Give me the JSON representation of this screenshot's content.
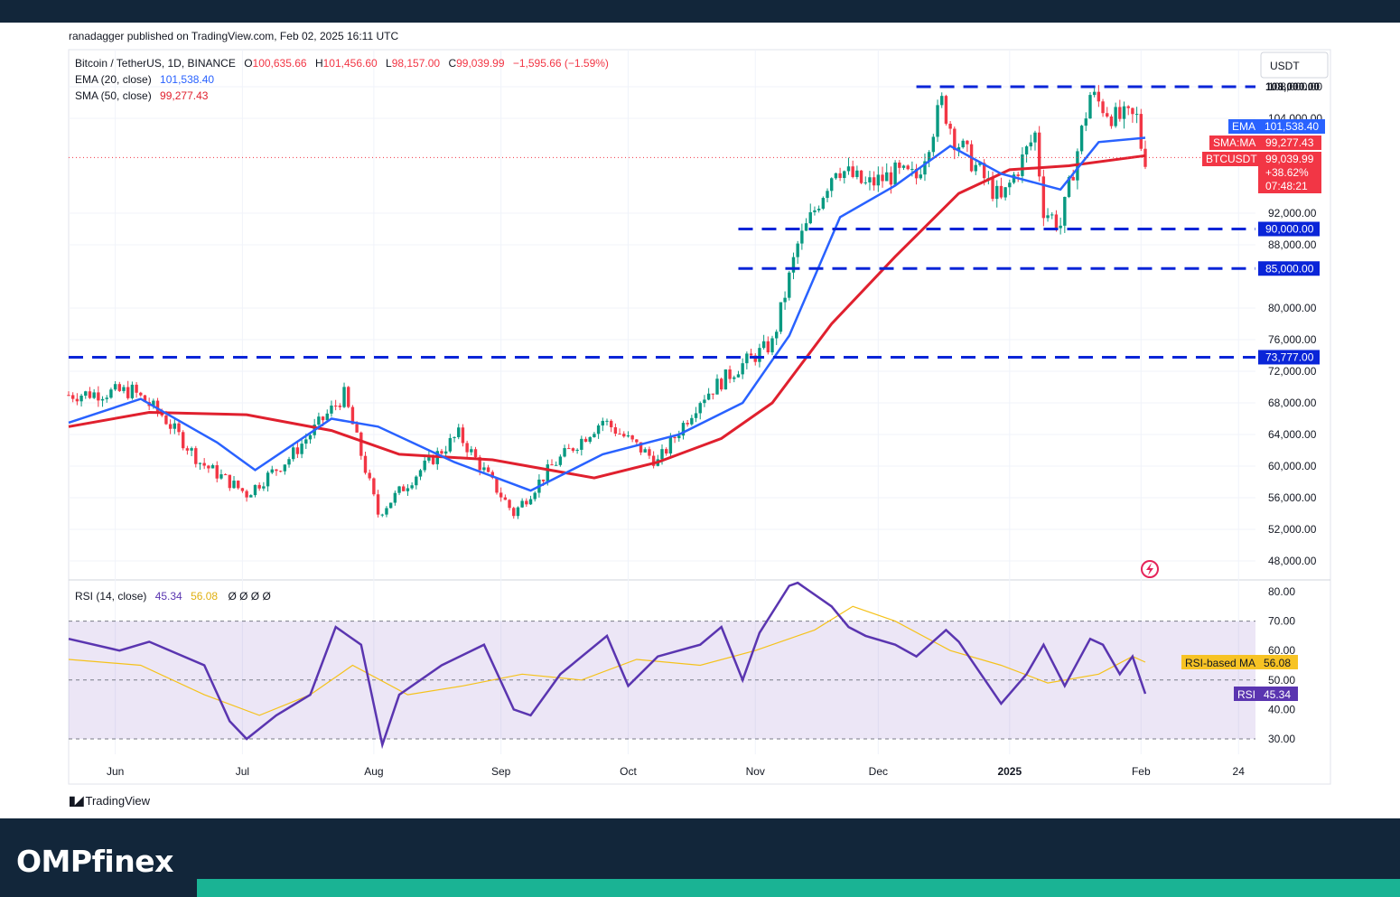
{
  "header": {
    "publisher_line": "ranadagger published on TradingView.com, Feb 02, 2025 16:11 UTC"
  },
  "legend": {
    "symbol": "Bitcoin / TetherUS, 1D, BINANCE",
    "open_label": "O",
    "open": "100,635.66",
    "high_label": "H",
    "high": "101,456.60",
    "low_label": "L",
    "low": "98,157.00",
    "close_label": "C",
    "close": "99,039.99",
    "change": "−1,595.66 (−1.59%)",
    "ema_label": "EMA (20, close)",
    "ema_value": "101,538.40",
    "sma_label": "SMA (50, close)",
    "sma_value": "99,277.43",
    "rsi_label": "RSI (14, close)",
    "rsi_value": "45.34",
    "rsi_ma_value": "56.08",
    "rsi_extra": "Ø  Ø  Ø  Ø"
  },
  "currency_button": "USDT",
  "price_tags": {
    "top_line": "108,000.00",
    "ema_name": "EMA",
    "ema": "101,538.40",
    "sma_name": "SMA:MA",
    "sma": "99,277.43",
    "symbol_name": "BTCUSDT",
    "close": "99,039.99",
    "pct": "+38.62%",
    "timer": "07:48:21",
    "l90": "90,000.00",
    "l85": "85,000.00",
    "l73": "73,777.00",
    "rsi_ma_name": "RSI-based MA",
    "rsi_ma": "56.08",
    "rsi_name": "RSI",
    "rsi": "45.34"
  },
  "colors": {
    "up": "#089981",
    "down": "#f23645",
    "ema": "#2962ff",
    "sma": "#e0202e",
    "levels": "#0a25d8",
    "rsi": "#5a35b0",
    "rsi_ma": "#f5c21b",
    "rsi_band": "#7e57c2"
  },
  "icons": {
    "flash": "lightning-icon",
    "tv_logo": "tradingview-logo"
  },
  "footer": {
    "tv_brand": "TradingView",
    "site_brand": "OMPfinex"
  },
  "chart_data": [
    {
      "type": "candlestick",
      "title": "Bitcoin / TetherUS, 1D, BINANCE",
      "x_ticks": [
        "Jun",
        "Jul",
        "Aug",
        "Sep",
        "Oct",
        "Nov",
        "Dec",
        "2025",
        "Feb",
        "24"
      ],
      "y_ticks": [
        "108,000.00",
        "104,000.00",
        "92,000.00",
        "88,000.00",
        "80,000.00",
        "76,000.00",
        "72,000.00",
        "68,000.00",
        "64,000.00",
        "60,000.00",
        "56,000.00",
        "52,000.00",
        "48,000.00"
      ],
      "ylim": [
        45000,
        110000
      ],
      "close_series": {
        "x": [
          "2024-05-24",
          "2024-06-08",
          "2024-06-15",
          "2024-06-24",
          "2024-07-05",
          "2024-07-15",
          "2024-07-28",
          "2024-08-05",
          "2024-08-15",
          "2024-08-24",
          "2024-09-06",
          "2024-09-15",
          "2024-09-27",
          "2024-10-10",
          "2024-10-20",
          "2024-10-29",
          "2024-11-06",
          "2024-11-12",
          "2024-11-21",
          "2024-11-28",
          "2024-12-05",
          "2024-12-10",
          "2024-12-16",
          "2024-12-19",
          "2024-12-30",
          "2025-01-07",
          "2025-01-09",
          "2025-01-13",
          "2025-01-20",
          "2025-01-26",
          "2025-01-31",
          "2025-02-01",
          "2025-02-02"
        ],
        "values": [
          69000,
          69500,
          66500,
          60500,
          56500,
          61000,
          69000,
          54000,
          59500,
          64000,
          54000,
          60000,
          65800,
          60500,
          68500,
          72500,
          75500,
          88000,
          98000,
          95500,
          97000,
          96500,
          106000,
          101500,
          93500,
          102000,
          92500,
          90500,
          107000,
          104000,
          104000,
          100600,
          99040
        ]
      },
      "ema": {
        "name": "EMA (20, close)",
        "x": [
          "2024-05-24",
          "2024-06-10",
          "2024-06-28",
          "2024-07-07",
          "2024-07-25",
          "2024-08-05",
          "2024-08-23",
          "2024-09-10",
          "2024-09-27",
          "2024-10-15",
          "2024-10-30",
          "2024-11-10",
          "2024-11-22",
          "2024-12-05",
          "2024-12-18",
          "2024-12-30",
          "2025-01-13",
          "2025-01-22",
          "2025-02-02"
        ],
        "values": [
          65500,
          68500,
          63000,
          59500,
          66000,
          65000,
          60500,
          56900,
          61500,
          64000,
          68000,
          76500,
          91500,
          95500,
          100500,
          97000,
          95000,
          101000,
          101538
        ]
      },
      "sma": {
        "name": "SMA (50, close)",
        "x": [
          "2024-05-24",
          "2024-06-12",
          "2024-07-05",
          "2024-07-25",
          "2024-08-10",
          "2024-09-01",
          "2024-09-25",
          "2024-10-10",
          "2024-10-25",
          "2024-11-06",
          "2024-11-20",
          "2024-12-05",
          "2024-12-20",
          "2025-01-01",
          "2025-01-15",
          "2025-02-02"
        ],
        "values": [
          65000,
          66800,
          66500,
          64500,
          61500,
          60800,
          58500,
          60500,
          63500,
          68000,
          78000,
          86500,
          94500,
          97500,
          98000,
          99277
        ]
      },
      "levels": [
        108000,
        90000,
        85000,
        73777
      ],
      "last_price": 99039.99
    },
    {
      "type": "line",
      "title": "RSI (14, close)",
      "y_ticks": [
        "80.00",
        "70.00",
        "60.00",
        "50.00",
        "40.00",
        "30.00"
      ],
      "ylim": [
        25,
        83
      ],
      "bands": [
        30,
        50,
        70
      ],
      "rsi": {
        "name": "RSI",
        "x": [
          "2024-05-24",
          "2024-06-05",
          "2024-06-12",
          "2024-06-25",
          "2024-07-01",
          "2024-07-05",
          "2024-07-12",
          "2024-07-20",
          "2024-07-26",
          "2024-08-01",
          "2024-08-06",
          "2024-08-10",
          "2024-08-20",
          "2024-08-30",
          "2024-09-06",
          "2024-09-10",
          "2024-09-17",
          "2024-09-28",
          "2024-10-03",
          "2024-10-10",
          "2024-10-20",
          "2024-10-25",
          "2024-10-30",
          "2024-11-03",
          "2024-11-10",
          "2024-11-12",
          "2024-11-20",
          "2024-11-24",
          "2024-11-28",
          "2024-12-05",
          "2024-12-10",
          "2024-12-17",
          "2024-12-20",
          "2024-12-30",
          "2025-01-05",
          "2025-01-09",
          "2025-01-14",
          "2025-01-20",
          "2025-01-23",
          "2025-01-27",
          "2025-01-30",
          "2025-02-02"
        ],
        "values": [
          64,
          60,
          63,
          55,
          36,
          30,
          38,
          45,
          68,
          62,
          28,
          45,
          55,
          62,
          40,
          38,
          52,
          65,
          48,
          58,
          62,
          68,
          50,
          66,
          82,
          83,
          75,
          68,
          65,
          62,
          58,
          67,
          63,
          42,
          52,
          62,
          48,
          64,
          62,
          52,
          58,
          45.34
        ]
      },
      "rsi_ma": {
        "name": "RSI-based MA",
        "x": [
          "2024-05-24",
          "2024-06-10",
          "2024-06-25",
          "2024-07-08",
          "2024-07-20",
          "2024-07-30",
          "2024-08-12",
          "2024-08-25",
          "2024-09-08",
          "2024-09-22",
          "2024-10-05",
          "2024-10-20",
          "2024-11-02",
          "2024-11-16",
          "2024-11-25",
          "2024-12-05",
          "2024-12-18",
          "2024-12-30",
          "2025-01-10",
          "2025-01-22",
          "2025-01-30",
          "2025-02-02"
        ],
        "values": [
          57,
          55,
          45,
          38,
          45,
          55,
          45,
          48,
          52,
          50,
          57,
          55,
          60,
          67,
          75,
          70,
          60,
          55,
          49,
          52,
          58,
          56.08
        ]
      }
    }
  ]
}
